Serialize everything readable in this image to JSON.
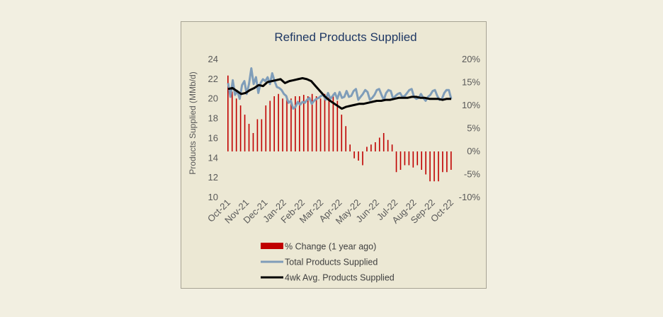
{
  "chart_data": {
    "type": "bar+line",
    "title": "Refined Products Supplied",
    "ylabel": "Products Supplied (MMb/d)",
    "y2label": "",
    "ylim": [
      10,
      24
    ],
    "y2lim": [
      -10,
      20
    ],
    "yticks": [
      "24",
      "22",
      "20",
      "18",
      "16",
      "14",
      "12",
      "10"
    ],
    "y2ticks": [
      "20%",
      "15%",
      "10%",
      "5%",
      "0%",
      "-5%",
      "-10%"
    ],
    "xticks": [
      "Oct-21",
      "Nov-21",
      "Dec-21",
      "Jan-22",
      "Feb-22",
      "Mar-22",
      "Apr-22",
      "May-22",
      "Jun-22",
      "Jul-22",
      "Aug-22",
      "Sep-22",
      "Oct-22"
    ],
    "legend": [
      "% Change (1 year ago)",
      "Total Products Supplied",
      "4wk Avg. Products Supplied"
    ],
    "colors": {
      "bars": "#c00000",
      "total": "#7f9db9",
      "avg": "#000000"
    },
    "series": [
      {
        "name": "% Change (1 year ago)",
        "type": "bar",
        "axis": "right",
        "values": [
          16.5,
          13,
          11.5,
          10,
          8,
          6,
          4,
          7,
          7,
          10,
          11,
          12,
          12.5,
          11.5,
          12,
          11.5,
          12,
          12,
          12.3,
          12,
          12.5,
          12,
          11.5,
          12.5,
          12,
          12.5,
          11,
          8,
          5.5,
          1.5,
          -1.5,
          -2,
          -3,
          1,
          1.5,
          2,
          3,
          4,
          2.5,
          1.5,
          -4.5,
          -4,
          -3,
          -3,
          -3.5,
          -3,
          -4,
          -5,
          -6.5,
          -6.5,
          -6.5,
          -4.5,
          -4.5,
          -4
        ]
      },
      {
        "name": "Total Products Supplied",
        "type": "line",
        "axis": "left",
        "values": [
          21.6,
          20.2,
          21.9,
          20.4,
          20.8,
          20.0,
          21.4,
          21.8,
          20.5,
          21.5,
          23.1,
          21.5,
          22.2,
          20.6,
          21.6,
          22.0,
          21.8,
          22.2,
          21.5,
          22.6,
          21.8,
          21.2,
          21.1,
          20.9,
          20.5,
          20.3,
          19.6,
          19.8,
          19.0,
          19.2,
          19.7,
          19.4,
          19.7,
          19.6,
          19.9,
          20.1,
          19.5,
          19.8,
          20.0,
          20.1,
          20.3,
          20.4,
          19.9,
          20.6,
          20.0,
          20.3,
          20.6,
          20.0,
          20.7,
          20.1,
          20.2,
          20.8,
          20.2,
          20.3,
          20.8,
          21.0,
          19.9,
          20.2,
          20.5,
          20.9,
          20.7,
          19.9,
          20.1,
          20.4,
          20.9,
          21.0,
          20.4,
          19.9,
          20.6,
          20.9,
          20.8,
          20.0,
          20.3,
          20.5,
          20.6,
          20.2,
          20.3,
          20.6,
          20.9,
          21.0,
          20.2,
          20.0,
          20.1,
          20.5,
          20.1,
          19.8,
          20.2,
          20.4,
          20.8,
          20.9,
          20.3,
          19.9,
          20.0,
          20.6,
          20.9,
          20.9,
          20.0
        ]
      },
      {
        "name": "4wk Avg. Products Supplied",
        "type": "line",
        "axis": "left",
        "values": [
          21.0,
          21.1,
          20.8,
          20.5,
          20.6,
          20.9,
          21.1,
          21.4,
          21.3,
          21.7,
          21.8,
          21.9,
          22.0,
          21.6,
          21.8,
          21.9,
          22.0,
          22.1,
          22.0,
          21.8,
          21.3,
          20.8,
          20.3,
          19.9,
          19.6,
          19.3,
          19.0,
          19.2,
          19.3,
          19.4,
          19.5,
          19.5,
          19.6,
          19.7,
          19.8,
          19.8,
          19.9,
          19.9,
          20.0,
          20.1,
          20.1,
          20.1,
          20.2,
          20.2,
          20.1,
          20.1,
          20.0,
          20.0,
          20.0,
          19.9,
          20.0,
          20.0
        ]
      }
    ]
  }
}
